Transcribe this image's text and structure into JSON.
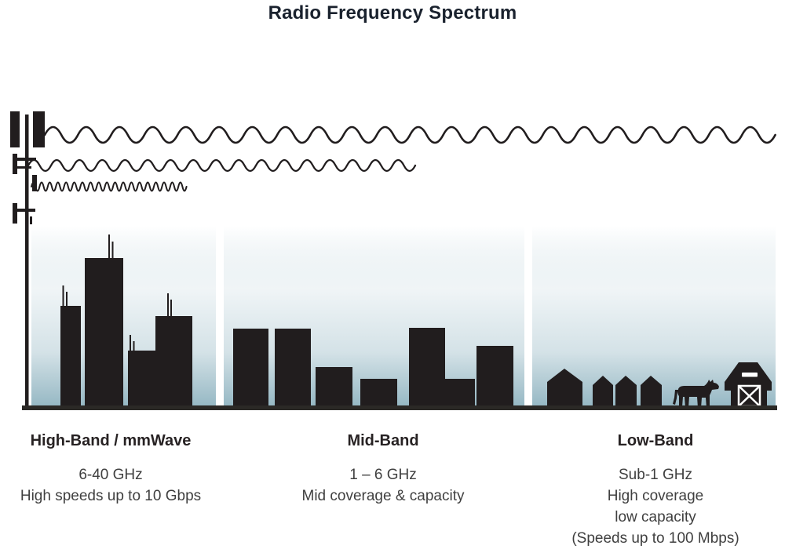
{
  "title": "Radio Frequency Spectrum",
  "colors": {
    "silhouette": "#211d1e",
    "title_text": "#1a222e",
    "heading_text": "#272223",
    "body_text": "#3f3f3f",
    "ground": "#2b2926",
    "sky_top": "#ffffff",
    "sky_mid": "#d4e2e7",
    "sky_bottom": "#96b8c4"
  },
  "icons": {
    "tower": "cell-tower-icon",
    "wave_long": "long-wavelength-wave-icon",
    "wave_medium": "medium-wavelength-wave-icon",
    "wave_short": "short-wavelength-wave-icon",
    "high_band_scene": "city-skyscrapers-icon",
    "mid_band_scene": "town-buildings-icon",
    "low_band_scene": "rural-houses-icon",
    "cow": "cow-icon",
    "barn": "barn-icon"
  },
  "bands": [
    {
      "heading": "High-Band / mmWave",
      "lines": [
        "6-40 GHz",
        "High speeds up to 10 Gbps"
      ]
    },
    {
      "heading": "Mid-Band",
      "lines": [
        "1 – 6 GHz",
        "Mid coverage & capacity"
      ]
    },
    {
      "heading": "Low-Band",
      "lines": [
        "Sub-1 GHz",
        "High coverage",
        "low capacity",
        "(Speeds up to 100 Mbps)"
      ]
    }
  ]
}
